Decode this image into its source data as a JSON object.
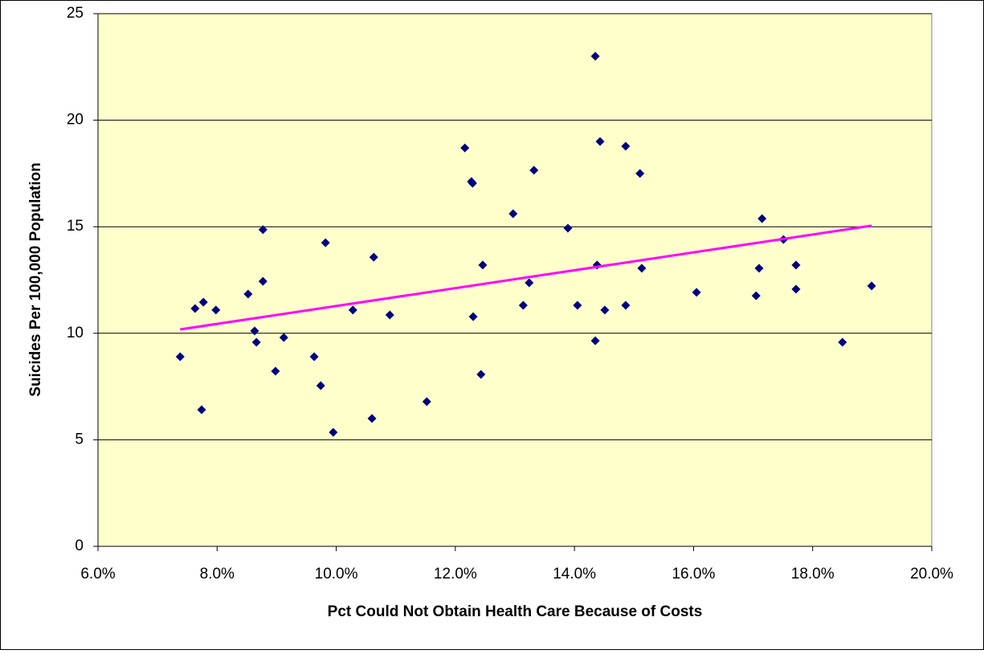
{
  "chart_data": {
    "type": "scatter",
    "x_label": "Pct Could Not Obtain Health Care Because of Costs",
    "y_label": "Suicides Per 100,000 Population",
    "xlim": [
      6,
      20
    ],
    "xticks": [
      {
        "value": 6,
        "label": "6.0%"
      },
      {
        "value": 8,
        "label": "8.0%"
      },
      {
        "value": 10,
        "label": "10.0%"
      },
      {
        "value": 12,
        "label": "12.0%"
      },
      {
        "value": 14,
        "label": "14.0%"
      },
      {
        "value": 16,
        "label": "16.0%"
      },
      {
        "value": 18,
        "label": "18.0%"
      },
      {
        "value": 20,
        "label": "20.0%"
      }
    ],
    "ylim": [
      0,
      25
    ],
    "yticks": [
      0,
      5,
      10,
      15,
      20,
      25
    ],
    "grid": true,
    "background": "#ffffcc",
    "series": [
      {
        "color": "#000080",
        "x": [
          7.38,
          7.63,
          7.77,
          7.74,
          7.98,
          8.52,
          8.63,
          8.66,
          8.77,
          8.77,
          8.98,
          9.12,
          9.63,
          9.74,
          9.82,
          9.95,
          10.28,
          10.6,
          10.63,
          10.9,
          11.52,
          12.16,
          12.27,
          12.29,
          12.3,
          12.43,
          12.46,
          12.97,
          13.14,
          13.24,
          13.32,
          14.05,
          13.89,
          14.35,
          14.43,
          14.51,
          14.35,
          14.38,
          14.86,
          14.86,
          15.1,
          15.13,
          16.05,
          17.05,
          17.1,
          17.15,
          17.51,
          17.72,
          17.72,
          18.5,
          18.99
        ],
        "values": [
          8.9,
          11.16,
          11.46,
          6.41,
          11.09,
          11.84,
          10.11,
          9.58,
          12.44,
          14.86,
          8.22,
          9.8,
          8.9,
          7.54,
          14.25,
          5.35,
          11.09,
          6.0,
          13.57,
          10.86,
          6.79,
          18.7,
          17.12,
          17.04,
          10.78,
          8.07,
          13.2,
          15.61,
          11.31,
          12.37,
          17.65,
          11.31,
          14.93,
          9.65,
          19.0,
          11.09,
          23.0,
          13.2,
          18.78,
          11.31,
          17.5,
          13.05,
          11.92,
          11.76,
          13.05,
          15.38,
          14.4,
          13.2,
          12.07,
          9.58,
          12.22
        ]
      }
    ],
    "trendline": {
      "color": "#ff00ff",
      "x": [
        7.38,
        18.99
      ],
      "values": [
        10.18,
        15.05
      ]
    }
  }
}
